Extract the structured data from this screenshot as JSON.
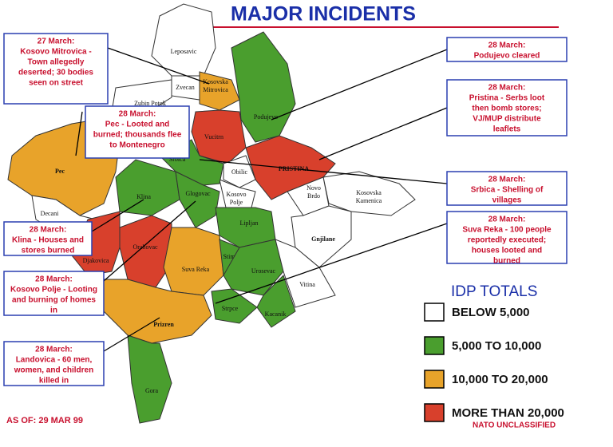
{
  "title": "MAJOR INCIDENTS",
  "callouts": [
    {
      "date": "27 March:",
      "lines": [
        "Kosovo Mitrovica -",
        "Town allegedly",
        "deserted; 30 bodies",
        "seen on street"
      ]
    },
    {
      "date": "28 March:",
      "lines": [
        "Pec - Looted and",
        "burned; thousands flee",
        "to Montenegro"
      ]
    },
    {
      "date": "28 March:",
      "lines": [
        "Klina - Houses and",
        "stores burned"
      ]
    },
    {
      "date": "28 March:",
      "lines": [
        "Kosovo Polje - Looting",
        "and burning of homes",
        "in"
      ]
    },
    {
      "date": "28 March:",
      "lines": [
        "Landovica - 60 men,",
        "women, and children",
        "killed in"
      ]
    },
    {
      "date": "28 March:",
      "lines": [
        "Podujevo cleared"
      ]
    },
    {
      "date": "28 March:",
      "lines": [
        "Pristina - Serbs loot",
        "then bomb stores;",
        "VJ/MUP distribute",
        "leaflets"
      ]
    },
    {
      "date": "28 March:",
      "lines": [
        "Srbica - Shelling of",
        "villages"
      ]
    },
    {
      "date": "28 March:",
      "lines": [
        "Suva Reka - 100 people",
        "reportedly executed;",
        "houses looted and",
        "burned"
      ]
    }
  ],
  "regions": [
    {
      "label": [
        "Leposavic"
      ],
      "color": "#ffffff"
    },
    {
      "label": [
        "Zvecan"
      ],
      "color": "#ffffff"
    },
    {
      "label": [
        "Zubin Potok"
      ],
      "color": "#ffffff"
    },
    {
      "label": [
        "Kosovska",
        "Mitrovica"
      ],
      "color": "#e8a32a"
    },
    {
      "label": [
        "Podujevo"
      ],
      "color": "#4a9e2e"
    },
    {
      "label": [
        "Vucitrn"
      ],
      "color": "#d8402c"
    },
    {
      "label": [
        "PRISTINA"
      ],
      "color": "#d8402c"
    },
    {
      "label": [
        "Obilic"
      ],
      "color": "#ffffff"
    },
    {
      "label": [
        "Kosovo",
        "Polje"
      ],
      "color": "#ffffff"
    },
    {
      "label": [
        "Srbica"
      ],
      "color": "#4a9e2e"
    },
    {
      "label": [
        "Pec"
      ],
      "color": "#e8a32a"
    },
    {
      "label": [
        "Klina"
      ],
      "color": "#4a9e2e"
    },
    {
      "label": [
        "Decani"
      ],
      "color": "#ffffff"
    },
    {
      "label": [
        "Djakovica"
      ],
      "color": "#d8402c"
    },
    {
      "label": [
        "Orahovac"
      ],
      "color": "#d8402c"
    },
    {
      "label": [
        "Glogovac"
      ],
      "color": "#4a9e2e"
    },
    {
      "label": [
        "Lipljan"
      ],
      "color": "#4a9e2e"
    },
    {
      "label": [
        "Suva Reka"
      ],
      "color": "#e8a32a"
    },
    {
      "label": [
        "Stimlje"
      ],
      "color": "#4a9e2e"
    },
    {
      "label": [
        "Urosevac"
      ],
      "color": "#4a9e2e"
    },
    {
      "label": [
        "Strpce"
      ],
      "color": "#4a9e2e"
    },
    {
      "label": [
        "Kacanik"
      ],
      "color": "#4a9e2e"
    },
    {
      "label": [
        "Prizren"
      ],
      "color": "#e8a32a"
    },
    {
      "label": [
        "Gora"
      ],
      "color": "#4a9e2e"
    },
    {
      "label": [
        "Kosovska",
        "Kamenica"
      ],
      "color": "#ffffff"
    },
    {
      "label": [
        "Novo",
        "Brdo"
      ],
      "color": "#ffffff"
    },
    {
      "label": [
        "Gnjilane"
      ],
      "color": "#ffffff"
    },
    {
      "label": [
        "Vitina"
      ],
      "color": "#ffffff"
    }
  ],
  "legend": {
    "title": "IDP TOTALS",
    "items": [
      {
        "label": "BELOW 5,000",
        "color": "#ffffff"
      },
      {
        "label": "5,000 TO 10,000",
        "color": "#4a9e2e"
      },
      {
        "label": "10,000 TO 20,000",
        "color": "#e8a32a"
      },
      {
        "label": "MORE THAN 20,000",
        "color": "#d8402c"
      }
    ]
  },
  "as_of": "AS OF: 29 MAR 99",
  "classification": "NATO UNCLASSIFIED"
}
